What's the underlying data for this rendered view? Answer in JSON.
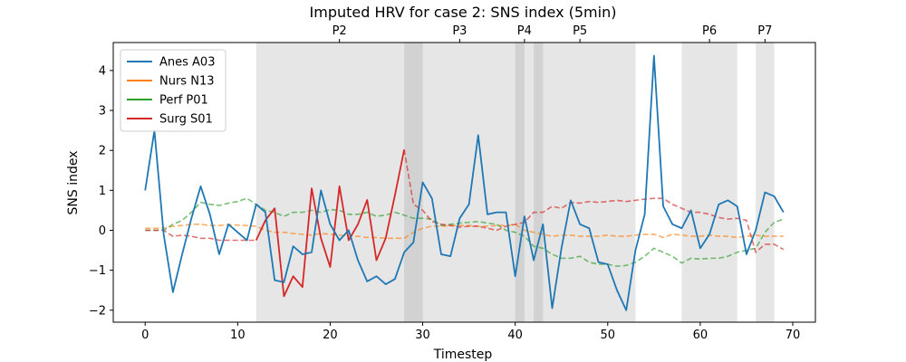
{
  "chart_data": {
    "type": "line",
    "title": "Imputed HRV for case 2: SNS index (5min)",
    "xlabel": "Timestep",
    "ylabel": "SNS index",
    "xlim": [
      -3.45,
      72.45
    ],
    "ylim": [
      -2.3,
      4.7
    ],
    "xticks": [
      0,
      10,
      20,
      30,
      40,
      50,
      60,
      70
    ],
    "yticks": [
      -2,
      -1,
      0,
      1,
      2,
      3,
      4
    ],
    "grid": false,
    "legend_position": "top-left",
    "shaded_regions": [
      {
        "x0": 12,
        "x1": 53,
        "color": "#808080",
        "opacity": 0.2
      },
      {
        "x0": 28,
        "x1": 30,
        "color": "#808080",
        "opacity": 0.2
      },
      {
        "x0": 40,
        "x1": 41,
        "color": "#808080",
        "opacity": 0.2
      },
      {
        "x0": 42,
        "x1": 43,
        "color": "#808080",
        "opacity": 0.2
      },
      {
        "x0": 58,
        "x1": 64,
        "color": "#808080",
        "opacity": 0.2
      },
      {
        "x0": 66,
        "x1": 68,
        "color": "#808080",
        "opacity": 0.2
      }
    ],
    "phase_labels": [
      {
        "label": "P2",
        "x": 21
      },
      {
        "label": "P3",
        "x": 34
      },
      {
        "label": "P4",
        "x": 41
      },
      {
        "label": "P5",
        "x": 47
      },
      {
        "label": "P6",
        "x": 61
      },
      {
        "label": "P7",
        "x": 67
      }
    ],
    "series": [
      {
        "name": "Anes A03",
        "color": "#1f77b4",
        "style": "solid",
        "x": [
          0,
          1,
          2,
          3,
          4,
          5,
          6,
          7,
          8,
          9,
          10,
          11,
          12,
          13,
          14,
          15,
          16,
          17,
          18,
          19,
          20,
          21,
          22,
          23,
          24,
          25,
          26,
          27,
          28,
          29,
          30,
          31,
          32,
          33,
          34,
          35,
          36,
          37,
          38,
          39,
          40,
          41,
          42,
          43,
          44,
          45,
          46,
          47,
          48,
          49,
          50,
          51,
          52,
          53,
          54,
          55,
          56,
          57,
          58,
          59,
          60,
          61,
          62,
          63,
          64,
          65,
          66,
          67,
          68,
          69
        ],
        "y": [
          1.0,
          2.5,
          -0.1,
          -1.55,
          -0.6,
          0.3,
          1.1,
          0.4,
          -0.6,
          0.15,
          -0.05,
          -0.25,
          0.65,
          0.45,
          -1.25,
          -1.3,
          -0.4,
          -0.6,
          -0.55,
          1.0,
          0.15,
          -0.25,
          0.0,
          -0.75,
          -1.28,
          -1.15,
          -1.35,
          -1.22,
          -0.55,
          -0.3,
          1.2,
          0.8,
          -0.6,
          -0.65,
          0.3,
          0.65,
          2.38,
          0.4,
          0.45,
          0.45,
          -1.15,
          0.35,
          -0.75,
          0.15,
          -1.95,
          -0.45,
          0.75,
          0.15,
          0.05,
          -0.8,
          -0.85,
          -1.5,
          -2.0,
          -0.5,
          0.4,
          4.37,
          0.6,
          0.15,
          0.05,
          0.5,
          -0.45,
          -0.1,
          0.65,
          0.75,
          0.6,
          -0.6,
          0.0,
          0.95,
          0.85,
          0.45
        ]
      },
      {
        "name": "Nurs N13",
        "color": "#ff7f0e",
        "style": "dashed",
        "x": [
          0,
          1,
          2,
          3,
          4,
          5,
          6,
          7,
          8,
          9,
          10,
          11,
          12,
          13,
          14,
          15,
          16,
          17,
          18,
          19,
          20,
          21,
          22,
          23,
          24,
          25,
          26,
          27,
          28,
          29,
          30,
          31,
          32,
          33,
          34,
          35,
          36,
          37,
          38,
          39,
          40,
          41,
          42,
          43,
          44,
          45,
          46,
          47,
          48,
          49,
          50,
          51,
          52,
          53,
          54,
          55,
          56,
          57,
          58,
          59,
          60,
          61,
          62,
          63,
          64,
          65,
          66,
          67,
          68,
          69
        ],
        "y": [
          0.05,
          0.05,
          0.05,
          0.1,
          0.12,
          0.15,
          0.15,
          0.12,
          0.12,
          0.14,
          0.13,
          0.12,
          0.1,
          0.0,
          -0.05,
          -0.05,
          -0.08,
          -0.1,
          -0.12,
          -0.08,
          -0.1,
          -0.12,
          -0.15,
          -0.15,
          -0.18,
          -0.18,
          -0.2,
          -0.2,
          -0.2,
          -0.05,
          0.05,
          0.1,
          0.1,
          0.12,
          0.12,
          0.12,
          0.1,
          0.1,
          0.12,
          0.12,
          0.15,
          0.0,
          -0.05,
          -0.1,
          -0.15,
          -0.12,
          -0.12,
          -0.15,
          -0.15,
          -0.15,
          -0.12,
          -0.15,
          -0.15,
          -0.12,
          -0.1,
          -0.1,
          -0.18,
          -0.1,
          -0.12,
          -0.15,
          -0.15,
          -0.12,
          -0.15,
          -0.15,
          -0.18,
          -0.15,
          -0.12,
          -0.15,
          -0.15,
          -0.15
        ]
      },
      {
        "name": "Perf P01",
        "color": "#2ca02c",
        "style": "dashed",
        "x": [
          0,
          1,
          2,
          3,
          4,
          5,
          6,
          7,
          8,
          9,
          10,
          11,
          12,
          13,
          14,
          15,
          16,
          17,
          18,
          19,
          20,
          21,
          22,
          23,
          24,
          25,
          26,
          27,
          28,
          29,
          30,
          31,
          32,
          33,
          34,
          35,
          36,
          37,
          38,
          39,
          40,
          41,
          42,
          43,
          44,
          45,
          46,
          47,
          48,
          49,
          50,
          51,
          52,
          53,
          54,
          55,
          56,
          57,
          58,
          59,
          60,
          61,
          62,
          63,
          64,
          65,
          66,
          67,
          68,
          69
        ],
        "y": [
          0.0,
          0.0,
          0.0,
          0.15,
          0.25,
          0.45,
          0.7,
          0.65,
          0.62,
          0.68,
          0.72,
          0.8,
          0.65,
          0.5,
          0.45,
          0.35,
          0.45,
          0.45,
          0.5,
          0.45,
          0.52,
          0.5,
          0.4,
          0.4,
          0.45,
          0.35,
          0.38,
          0.45,
          0.38,
          0.3,
          0.3,
          0.28,
          0.12,
          0.15,
          0.18,
          0.2,
          0.22,
          0.18,
          0.15,
          0.0,
          -0.05,
          -0.15,
          -0.4,
          -0.45,
          -0.6,
          -0.7,
          -0.7,
          -0.65,
          -0.8,
          -0.85,
          -0.85,
          -0.9,
          -0.88,
          -0.8,
          -0.65,
          -0.45,
          -0.55,
          -0.65,
          -0.82,
          -0.7,
          -0.72,
          -0.7,
          -0.7,
          -0.65,
          -0.55,
          -0.5,
          -0.45,
          -0.05,
          0.2,
          0.28
        ]
      },
      {
        "name": "Surg S01",
        "color": "#d62728",
        "style": "mixed",
        "x": [
          0,
          1,
          2,
          3,
          4,
          5,
          6,
          7,
          8,
          9,
          10,
          11,
          12,
          13,
          14,
          15,
          16,
          17,
          18,
          19,
          20,
          21,
          22,
          23,
          24,
          25,
          26,
          27,
          28,
          29,
          30,
          31,
          32,
          33,
          34,
          35,
          36,
          37,
          38,
          39,
          40,
          41,
          42,
          43,
          44,
          45,
          46,
          47,
          48,
          49,
          50,
          51,
          52,
          53,
          54,
          55,
          56,
          57,
          58,
          59,
          60,
          61,
          62,
          63,
          64,
          65,
          66,
          67,
          68,
          69
        ],
        "y": [
          0.0,
          0.0,
          0.0,
          -0.15,
          -0.12,
          -0.15,
          -0.2,
          -0.2,
          -0.25,
          -0.25,
          -0.25,
          -0.25,
          -0.25,
          0.25,
          0.55,
          -1.65,
          -1.15,
          -1.42,
          1.05,
          -0.2,
          -0.92,
          1.1,
          -0.25,
          0.15,
          0.76,
          -0.75,
          -0.2,
          0.88,
          2.02,
          0.65,
          0.5,
          0.22,
          0.15,
          0.12,
          0.08,
          0.1,
          0.1,
          0.05,
          0.0,
          0.1,
          0.15,
          0.2,
          0.45,
          0.45,
          0.6,
          0.55,
          0.7,
          0.68,
          0.72,
          0.7,
          0.72,
          0.75,
          0.72,
          0.75,
          0.78,
          0.8,
          0.8,
          0.65,
          0.55,
          0.45,
          0.45,
          0.4,
          0.32,
          0.28,
          0.3,
          0.25,
          -0.55,
          -0.35,
          -0.35,
          -0.48
        ],
        "solid_range": [
          12,
          28
        ]
      }
    ]
  }
}
